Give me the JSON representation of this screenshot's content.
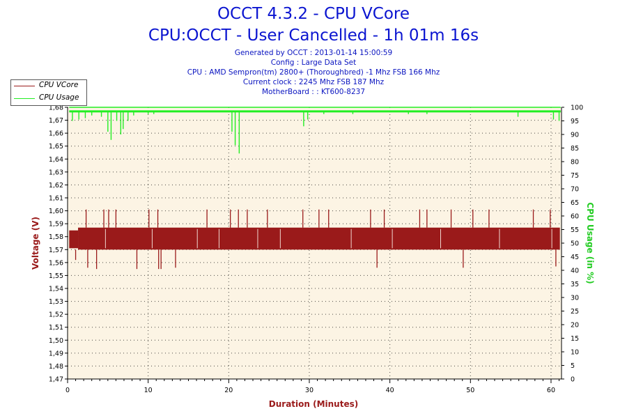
{
  "header": {
    "title_line1": "OCCT 4.3.2 - CPU VCore",
    "title_line2": "CPU:OCCT - User Cancelled - 1h 01m 16s",
    "info_lines": [
      "Generated by OCCT : 2013-01-14 15:00:59",
      "Config : Large Data Set",
      "CPU : AMD Sempron(tm) 2800+ (Thoroughbred) -1 Mhz FSB 166 Mhz",
      "Current clock : 2245 Mhz FSB 187 Mhz",
      "MotherBoard : : KT600-8237"
    ]
  },
  "legend": [
    {
      "label": "CPU VCore",
      "color": "#9a1a1a"
    },
    {
      "label": "CPU Usage",
      "color": "#22ee22"
    }
  ],
  "colors": {
    "plot_background": "#fcf4e4",
    "vcore": "#9a1a1a",
    "usage": "#22ee22",
    "left_axis_label": "#9a1a1a",
    "right_axis_label": "#22cc22",
    "title": "#0a14d0"
  },
  "chart_data": {
    "type": "line",
    "xlabel": "Duration (Minutes)",
    "ylabel": "Voltage (V)",
    "y2label": "CPU Usage (in %)",
    "xlim": [
      0,
      61.3
    ],
    "ylim": [
      1.47,
      1.68
    ],
    "y2lim": [
      0,
      100
    ],
    "x_ticks": [
      "0",
      "10",
      "20",
      "30",
      "40",
      "50",
      "60"
    ],
    "y_ticks": [
      "1,47",
      "1,48",
      "1,49",
      "1,50",
      "1,51",
      "1,52",
      "1,53",
      "1,54",
      "1,55",
      "1,56",
      "1,57",
      "1,58",
      "1,59",
      "1,60",
      "1,61",
      "1,62",
      "1,63",
      "1,64",
      "1,65",
      "1,66",
      "1,67",
      "1,68"
    ],
    "y2_ticks": [
      "0",
      "5",
      "10",
      "15",
      "20",
      "25",
      "30",
      "35",
      "40",
      "45",
      "50",
      "55",
      "60",
      "65",
      "70",
      "75",
      "80",
      "85",
      "90",
      "95",
      "100"
    ],
    "grid": true,
    "legend_position": "top-left",
    "series": [
      {
        "name": "CPU VCore",
        "band_low": 1.57,
        "band_high": 1.587,
        "spikes": [
          {
            "x": 1.0,
            "y": 1.562
          },
          {
            "x": 2.3,
            "y": 1.601
          },
          {
            "x": 2.5,
            "y": 1.556
          },
          {
            "x": 3.6,
            "y": 1.555
          },
          {
            "x": 4.5,
            "y": 1.601
          },
          {
            "x": 5.1,
            "y": 1.601
          },
          {
            "x": 6.0,
            "y": 1.601
          },
          {
            "x": 8.6,
            "y": 1.555
          },
          {
            "x": 10.1,
            "y": 1.601
          },
          {
            "x": 11.2,
            "y": 1.601
          },
          {
            "x": 11.3,
            "y": 1.555
          },
          {
            "x": 11.6,
            "y": 1.555
          },
          {
            "x": 13.4,
            "y": 1.556
          },
          {
            "x": 17.3,
            "y": 1.601
          },
          {
            "x": 20.2,
            "y": 1.601
          },
          {
            "x": 21.2,
            "y": 1.601
          },
          {
            "x": 22.3,
            "y": 1.601
          },
          {
            "x": 24.8,
            "y": 1.601
          },
          {
            "x": 29.2,
            "y": 1.601
          },
          {
            "x": 31.2,
            "y": 1.601
          },
          {
            "x": 32.4,
            "y": 1.601
          },
          {
            "x": 37.6,
            "y": 1.601
          },
          {
            "x": 38.4,
            "y": 1.556
          },
          {
            "x": 39.3,
            "y": 1.601
          },
          {
            "x": 43.7,
            "y": 1.601
          },
          {
            "x": 44.6,
            "y": 1.601
          },
          {
            "x": 47.6,
            "y": 1.601
          },
          {
            "x": 49.1,
            "y": 1.556
          },
          {
            "x": 50.3,
            "y": 1.601
          },
          {
            "x": 52.3,
            "y": 1.601
          },
          {
            "x": 57.8,
            "y": 1.601
          },
          {
            "x": 59.9,
            "y": 1.601
          },
          {
            "x": 60.6,
            "y": 1.557
          }
        ]
      },
      {
        "name": "CPU Usage",
        "baseline": 98.5,
        "dips": [
          {
            "x": 0.6,
            "y": 95
          },
          {
            "x": 1.4,
            "y": 95.5
          },
          {
            "x": 2.2,
            "y": 96
          },
          {
            "x": 3.0,
            "y": 97
          },
          {
            "x": 4.2,
            "y": 96.5
          },
          {
            "x": 5.0,
            "y": 91
          },
          {
            "x": 5.4,
            "y": 88
          },
          {
            "x": 6.1,
            "y": 95
          },
          {
            "x": 6.6,
            "y": 90
          },
          {
            "x": 6.9,
            "y": 92
          },
          {
            "x": 7.5,
            "y": 95
          },
          {
            "x": 8.2,
            "y": 97
          },
          {
            "x": 10.0,
            "y": 97.5
          },
          {
            "x": 10.7,
            "y": 97.5
          },
          {
            "x": 20.4,
            "y": 91
          },
          {
            "x": 20.8,
            "y": 86
          },
          {
            "x": 21.3,
            "y": 83
          },
          {
            "x": 29.3,
            "y": 93
          },
          {
            "x": 29.8,
            "y": 95.5
          },
          {
            "x": 31.8,
            "y": 97.5
          },
          {
            "x": 35.4,
            "y": 97.5
          },
          {
            "x": 42.3,
            "y": 97.5
          },
          {
            "x": 44.6,
            "y": 97.5
          },
          {
            "x": 55.9,
            "y": 96.5
          },
          {
            "x": 60.3,
            "y": 95.5
          },
          {
            "x": 61.0,
            "y": 95
          }
        ]
      }
    ]
  }
}
